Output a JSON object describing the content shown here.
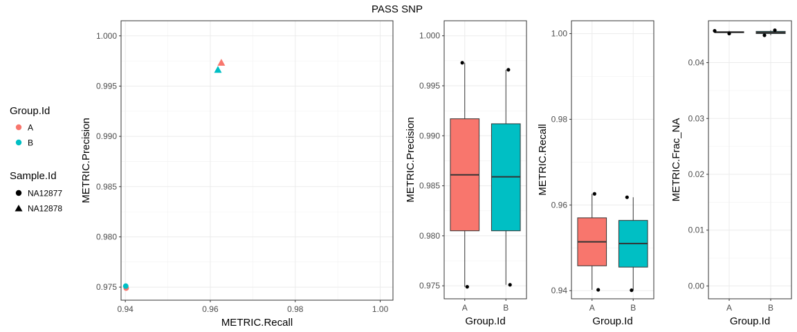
{
  "title": "PASS SNP",
  "legends": {
    "group": {
      "title": "Group.Id",
      "entries": [
        {
          "label": "A",
          "color": "#F8766D",
          "shape": "circle"
        },
        {
          "label": "B",
          "color": "#00BFC4",
          "shape": "circle"
        }
      ]
    },
    "sample": {
      "title": "Sample.Id",
      "entries": [
        {
          "label": "NA12877",
          "color": "#000000",
          "shape": "circle"
        },
        {
          "label": "NA12878",
          "color": "#000000",
          "shape": "triangle"
        }
      ]
    }
  },
  "chart_data": [
    {
      "type": "scatter",
      "xlabel": "METRIC.Recall",
      "ylabel": "METRIC.Precision",
      "xlim": [
        0.939,
        1.003
      ],
      "ylim": [
        0.9737,
        1.0015
      ],
      "xticks": [
        {
          "v": 0.94,
          "label": "0.94"
        },
        {
          "v": 0.96,
          "label": "0.96"
        },
        {
          "v": 0.98,
          "label": "0.98"
        },
        {
          "v": 1.0,
          "label": "1.00"
        }
      ],
      "yticks": [
        {
          "v": 0.975,
          "label": "0.975"
        },
        {
          "v": 0.98,
          "label": "0.980"
        },
        {
          "v": 0.985,
          "label": "0.985"
        },
        {
          "v": 0.99,
          "label": "0.990"
        },
        {
          "v": 0.995,
          "label": "0.995"
        },
        {
          "v": 1.0,
          "label": "1.000"
        }
      ],
      "grid": true,
      "points": [
        {
          "group": "A",
          "sample": "NA12877",
          "x": 0.9402,
          "y": 0.9749
        },
        {
          "group": "B",
          "sample": "NA12877",
          "x": 0.9401,
          "y": 0.9751
        },
        {
          "group": "A",
          "sample": "NA12878",
          "x": 0.9626,
          "y": 0.9973
        },
        {
          "group": "B",
          "sample": "NA12878",
          "x": 0.9618,
          "y": 0.9966
        }
      ]
    },
    {
      "type": "box",
      "xlabel": "Group.Id",
      "ylabel": "METRIC.Precision",
      "categories": [
        "A",
        "B"
      ],
      "ylim": [
        0.9737,
        1.0015
      ],
      "yticks": [
        {
          "v": 0.975,
          "label": "0.975"
        },
        {
          "v": 0.98,
          "label": "0.980"
        },
        {
          "v": 0.985,
          "label": "0.985"
        },
        {
          "v": 0.99,
          "label": "0.990"
        },
        {
          "v": 0.995,
          "label": "0.995"
        },
        {
          "v": 1.0,
          "label": "1.000"
        }
      ],
      "boxes": [
        {
          "group": "A",
          "color": "#F8766D",
          "min": 0.9749,
          "q1": 0.9805,
          "median": 0.9861,
          "q3": 0.9917,
          "max": 0.9973
        },
        {
          "group": "B",
          "color": "#00BFC4",
          "min": 0.9751,
          "q1": 0.9805,
          "median": 0.9859,
          "q3": 0.9912,
          "max": 0.9966
        }
      ],
      "points": [
        {
          "group": "A",
          "y": 0.9749,
          "jitter": 0.06
        },
        {
          "group": "A",
          "y": 0.9973,
          "jitter": -0.06
        },
        {
          "group": "B",
          "y": 0.9751,
          "jitter": 0.1
        },
        {
          "group": "B",
          "y": 0.9966,
          "jitter": 0.06
        }
      ]
    },
    {
      "type": "box",
      "xlabel": "Group.Id",
      "ylabel": "METRIC.Recall",
      "categories": [
        "A",
        "B"
      ],
      "ylim": [
        0.9381,
        1.003
      ],
      "yticks": [
        {
          "v": 0.94,
          "label": "0.94"
        },
        {
          "v": 0.96,
          "label": "0.96"
        },
        {
          "v": 0.98,
          "label": "0.98"
        },
        {
          "v": 1.0,
          "label": "1.00"
        }
      ],
      "boxes": [
        {
          "group": "A",
          "color": "#F8766D",
          "min": 0.9402,
          "q1": 0.9458,
          "median": 0.9514,
          "q3": 0.957,
          "max": 0.9626
        },
        {
          "group": "B",
          "color": "#00BFC4",
          "min": 0.9401,
          "q1": 0.9455,
          "median": 0.951,
          "q3": 0.9564,
          "max": 0.9618
        }
      ],
      "points": [
        {
          "group": "A",
          "y": 0.9402,
          "jitter": 0.15
        },
        {
          "group": "A",
          "y": 0.9626,
          "jitter": 0.06
        },
        {
          "group": "B",
          "y": 0.9401,
          "jitter": -0.04
        },
        {
          "group": "B",
          "y": 0.9618,
          "jitter": -0.15
        }
      ]
    },
    {
      "type": "box",
      "xlabel": "Group.Id",
      "ylabel": "METRIC.Frac_NA",
      "categories": [
        "A",
        "B"
      ],
      "ylim": [
        -0.0023,
        0.0475
      ],
      "yticks": [
        {
          "v": 0.0,
          "label": "0.00"
        },
        {
          "v": 0.01,
          "label": "0.01"
        },
        {
          "v": 0.02,
          "label": "0.02"
        },
        {
          "v": 0.03,
          "label": "0.03"
        },
        {
          "v": 0.04,
          "label": "0.04"
        }
      ],
      "boxes": [
        {
          "group": "A",
          "color": "#F8766D",
          "min": 0.0452,
          "q1": 0.04535,
          "median": 0.04545,
          "q3": 0.04555,
          "max": 0.0457
        },
        {
          "group": "B",
          "color": "#00BFC4",
          "min": 0.0449,
          "q1": 0.0452,
          "median": 0.0454,
          "q3": 0.0456,
          "max": 0.0458
        }
      ],
      "points": [
        {
          "group": "A",
          "y": 0.0457,
          "jitter": -0.35
        },
        {
          "group": "A",
          "y": 0.0452,
          "jitter": 0.0
        },
        {
          "group": "B",
          "y": 0.0449,
          "jitter": -0.15
        },
        {
          "group": "B",
          "y": 0.0458,
          "jitter": 0.1
        }
      ]
    }
  ]
}
